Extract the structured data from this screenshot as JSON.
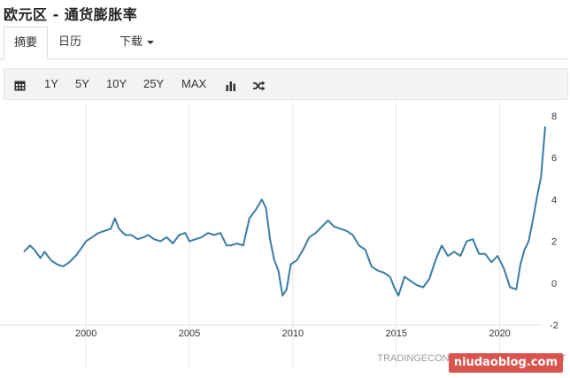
{
  "page": {
    "title": "欧元区 - 通货膨胀率"
  },
  "tabs": [
    {
      "label": "摘要",
      "active": true
    },
    {
      "label": "日历"
    },
    {
      "label": "下载"
    }
  ],
  "toolbar": {
    "ranges": [
      "1Y",
      "5Y",
      "10Y",
      "25Y",
      "MAX"
    ],
    "icons": [
      "calendar-icon",
      "bar-chart-icon",
      "shuffle-icon"
    ]
  },
  "chart_data": {
    "type": "line",
    "line_color": "#3a7ca5",
    "xlim": [
      1997.0,
      2022.2
    ],
    "ylim": [
      -2,
      8
    ],
    "x_ticks": [
      2000,
      2005,
      2010,
      2015,
      2020
    ],
    "y_ticks": [
      8,
      6,
      4,
      2,
      0,
      -2
    ],
    "grid": "vertical",
    "source_label": "TRADINGECONOMICS.COM | EUROSTAT",
    "series": [
      {
        "x": [
          1997.0,
          1997.3,
          1997.5,
          1997.8,
          1998.0,
          1998.3,
          1998.6,
          1998.9,
          1999.2,
          1999.5,
          1999.8,
          2000.0,
          2000.3,
          2000.6,
          2000.9,
          2001.2,
          2001.4,
          2001.6,
          2001.9,
          2002.2,
          2002.5,
          2002.8,
          2003.0,
          2003.3,
          2003.6,
          2003.9,
          2004.2,
          2004.5,
          2004.8,
          2005.0,
          2005.3,
          2005.6,
          2005.9,
          2006.2,
          2006.5,
          2006.8,
          2007.0,
          2007.3,
          2007.6,
          2007.9,
          2008.2,
          2008.5,
          2008.7,
          2008.9,
          2009.1,
          2009.3,
          2009.5,
          2009.7,
          2009.9,
          2010.2,
          2010.5,
          2010.8,
          2011.1,
          2011.4,
          2011.7,
          2012.0,
          2012.3,
          2012.6,
          2012.9,
          2013.2,
          2013.5,
          2013.8,
          2014.1,
          2014.4,
          2014.7,
          2014.9,
          2015.1,
          2015.4,
          2015.7,
          2016.0,
          2016.3,
          2016.6,
          2016.9,
          2017.2,
          2017.5,
          2017.8,
          2018.1,
          2018.4,
          2018.7,
          2019.0,
          2019.3,
          2019.6,
          2019.9,
          2020.2,
          2020.5,
          2020.8,
          2021.0,
          2021.2,
          2021.4,
          2021.6,
          2021.8,
          2022.0,
          2022.2
        ],
        "y": [
          1.5,
          1.8,
          1.6,
          1.2,
          1.5,
          1.1,
          0.9,
          0.8,
          1.0,
          1.3,
          1.7,
          2.0,
          2.2,
          2.4,
          2.5,
          2.6,
          3.1,
          2.6,
          2.3,
          2.3,
          2.1,
          2.2,
          2.3,
          2.1,
          2.0,
          2.2,
          1.9,
          2.3,
          2.4,
          2.0,
          2.1,
          2.2,
          2.4,
          2.3,
          2.4,
          1.8,
          1.8,
          1.9,
          1.8,
          3.1,
          3.5,
          4.0,
          3.6,
          2.1,
          1.1,
          0.6,
          -0.6,
          -0.3,
          0.9,
          1.1,
          1.6,
          2.2,
          2.4,
          2.7,
          3.0,
          2.7,
          2.6,
          2.5,
          2.3,
          1.8,
          1.6,
          0.8,
          0.6,
          0.5,
          0.3,
          -0.2,
          -0.6,
          0.3,
          0.1,
          -0.1,
          -0.2,
          0.2,
          1.1,
          1.8,
          1.3,
          1.5,
          1.3,
          2.0,
          2.1,
          1.4,
          1.4,
          1.0,
          1.3,
          0.7,
          -0.2,
          -0.3,
          0.9,
          1.6,
          2.0,
          3.0,
          4.1,
          5.1,
          7.5
        ]
      }
    ]
  },
  "watermark": "niudaoblog.com"
}
